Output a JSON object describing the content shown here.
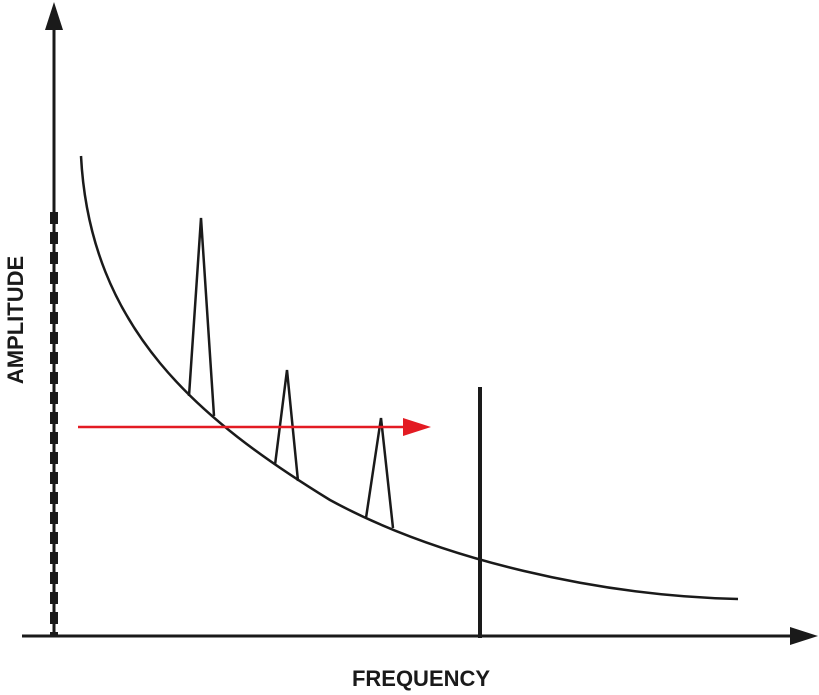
{
  "x_axis_label": "FREQUENCY",
  "y_axis_label": "AMPLITUDE",
  "colors": {
    "ink": "#1a1a1a",
    "arrow": "#e31b23",
    "background": "#ffffff"
  }
}
